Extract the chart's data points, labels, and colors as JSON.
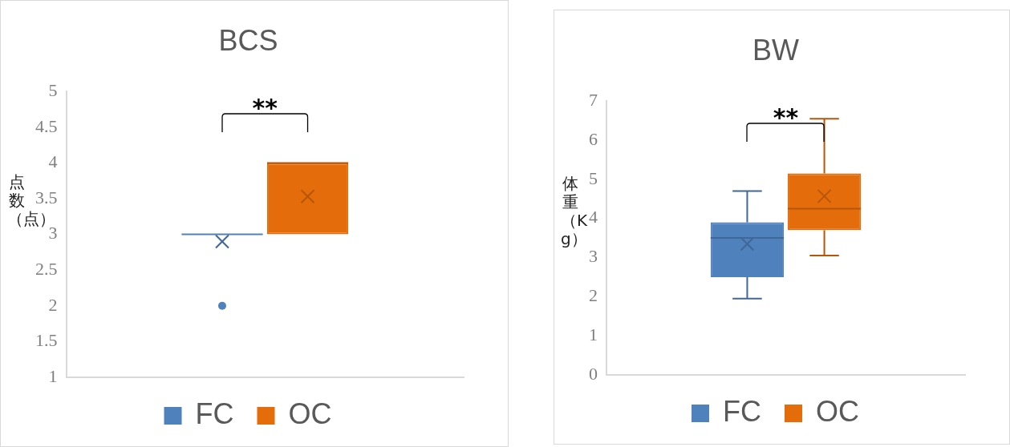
{
  "chart_data": [
    {
      "type": "box",
      "title": "BCS",
      "ylabel": "点数（点）",
      "categories": [
        null
      ],
      "ylim": [
        1,
        5
      ],
      "yticks": [
        1,
        1.5,
        2,
        2.5,
        3,
        3.5,
        4,
        4.5,
        5
      ],
      "grid": false,
      "legend": "bottom",
      "annotations": [
        "**"
      ],
      "series": [
        {
          "name": "FC",
          "color": "#4f81bd",
          "boxes": [
            {
              "low": 3,
              "q1": 3,
              "median": 3,
              "q3": 3,
              "high": 3,
              "mean": 2.9,
              "outliers": [
                2
              ]
            }
          ]
        },
        {
          "name": "OC",
          "color": "#e46c0a",
          "boxes": [
            {
              "low": 3,
              "q1": 3,
              "median": 4,
              "q3": 4,
              "high": 4,
              "mean": 3.53
            }
          ]
        }
      ]
    },
    {
      "type": "box",
      "title": "BW",
      "ylabel": "体重（Kg）",
      "categories": [
        null
      ],
      "ylim": [
        0,
        7
      ],
      "yticks": [
        0,
        1,
        2,
        3,
        4,
        5,
        6,
        7
      ],
      "grid": false,
      "legend": "bottom",
      "annotations": [
        "**"
      ],
      "series": [
        {
          "name": "FC",
          "color": "#4f81bd",
          "boxes": [
            {
              "low": 1.95,
              "q1": 2.5,
              "median": 3.5,
              "q3": 3.9,
              "high": 4.7,
              "mean": 3.35
            }
          ]
        },
        {
          "name": "OC",
          "color": "#e46c0a",
          "boxes": [
            {
              "low": 3.05,
              "q1": 3.7,
              "median": 4.25,
              "q3": 5.15,
              "high": 6.55,
              "mean": 4.57
            }
          ]
        }
      ]
    }
  ]
}
